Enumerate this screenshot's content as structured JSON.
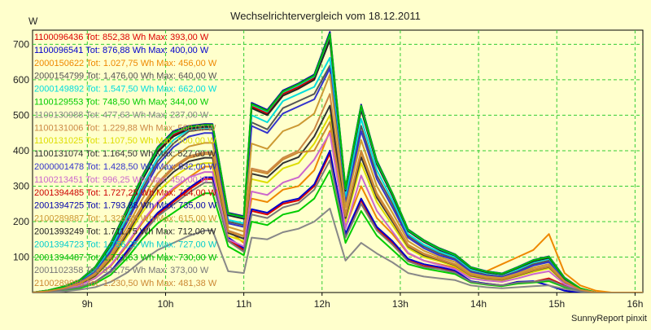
{
  "chart_data": {
    "type": "line",
    "title": "Wechselrichtervergleich vom 18.12.2011",
    "ylabel": "W",
    "xlabel": "",
    "ylim": [
      0,
      740
    ],
    "xlim": [
      8.3,
      16.1
    ],
    "yticks": [
      100,
      200,
      300,
      400,
      500,
      600,
      700
    ],
    "xticks": [
      9,
      10,
      11,
      12,
      13,
      14,
      15,
      16
    ],
    "xtick_labels": [
      "9h",
      "10h",
      "11h",
      "12h",
      "13h",
      "14h",
      "15h",
      "16h"
    ],
    "grid": true,
    "legend_position": "top-left",
    "footer": "SunnyReport pinxit",
    "x": [
      8.3,
      8.5,
      8.7,
      8.9,
      9.1,
      9.3,
      9.5,
      9.7,
      9.9,
      10.1,
      10.3,
      10.5,
      10.6,
      10.8,
      11.0,
      11.1,
      11.3,
      11.5,
      11.7,
      11.9,
      12.1,
      12.3,
      12.5,
      12.7,
      12.9,
      13.1,
      13.3,
      13.5,
      13.7,
      13.9,
      14.1,
      14.3,
      14.5,
      14.7,
      14.9,
      15.1,
      15.3,
      15.5,
      15.7,
      15.9,
      16.1
    ],
    "series": [
      {
        "name": "1100096436 Tot: 852,38 Wh Max: 393,00 W",
        "color": "#dd0000",
        "values": [
          0,
          3,
          8,
          15,
          30,
          60,
          110,
          170,
          220,
          255,
          290,
          320,
          320,
          150,
          120,
          230,
          220,
          250,
          260,
          300,
          392,
          160,
          260,
          180,
          140,
          90,
          75,
          70,
          60,
          30,
          25,
          20,
          30,
          30,
          40,
          20,
          5,
          0,
          0,
          0,
          0
        ]
      },
      {
        "name": "1100096541 Tot: 876,88 Wh Max: 400,00 W",
        "color": "#0000cc",
        "values": [
          0,
          3,
          8,
          15,
          30,
          60,
          115,
          175,
          225,
          260,
          295,
          325,
          325,
          155,
          125,
          235,
          225,
          255,
          265,
          305,
          400,
          165,
          265,
          185,
          145,
          95,
          80,
          72,
          62,
          32,
          25,
          20,
          30,
          32,
          20,
          5,
          0,
          0,
          0,
          0,
          0
        ]
      },
      {
        "name": "2000150622 Tot: 1.027,75 Wh Max: 456,00 W",
        "color": "#ee8800",
        "values": [
          0,
          5,
          10,
          20,
          40,
          75,
          130,
          195,
          250,
          290,
          325,
          355,
          355,
          175,
          140,
          265,
          255,
          290,
          300,
          345,
          456,
          185,
          300,
          210,
          165,
          110,
          90,
          80,
          70,
          45,
          60,
          80,
          100,
          120,
          165,
          55,
          20,
          5,
          0,
          0,
          0
        ]
      },
      {
        "name": "2000154799 Tot: 1.476,00 Wh Max: 640,00 W",
        "color": "#555555",
        "values": [
          0,
          5,
          15,
          30,
          60,
          120,
          200,
          290,
          370,
          420,
          455,
          460,
          460,
          200,
          190,
          480,
          460,
          520,
          540,
          560,
          640,
          260,
          470,
          330,
          250,
          160,
          130,
          110,
          95,
          60,
          50,
          45,
          60,
          80,
          90,
          35,
          10,
          0,
          0,
          0,
          0
        ]
      },
      {
        "name": "2000149892 Tot: 1.547,50 Wh Max: 662,00 W",
        "color": "#00dddd",
        "values": [
          0,
          5,
          15,
          30,
          65,
          125,
          210,
          300,
          380,
          430,
          460,
          465,
          465,
          205,
          195,
          500,
          480,
          540,
          560,
          580,
          662,
          270,
          490,
          345,
          260,
          165,
          135,
          115,
          100,
          65,
          55,
          50,
          65,
          85,
          95,
          38,
          10,
          0,
          0,
          0,
          0
        ]
      },
      {
        "name": "1100129553 Tot: 748,50 Wh Max: 344,00 W",
        "color": "#00cc00",
        "values": [
          0,
          2,
          6,
          12,
          25,
          50,
          95,
          150,
          195,
          225,
          255,
          280,
          280,
          130,
          105,
          200,
          190,
          220,
          230,
          265,
          344,
          140,
          230,
          160,
          120,
          80,
          68,
          60,
          52,
          28,
          22,
          18,
          25,
          28,
          32,
          15,
          5,
          0,
          0,
          0,
          0
        ]
      },
      {
        "name": "1100130988 Tot: 477,63 Wh Max: 237,00 W",
        "color": "#888888",
        "values": [
          0,
          1,
          3,
          8,
          15,
          30,
          55,
          90,
          120,
          140,
          160,
          175,
          175,
          60,
          55,
          155,
          150,
          170,
          180,
          200,
          237,
          90,
          140,
          110,
          85,
          55,
          45,
          40,
          35,
          20,
          15,
          12,
          15,
          18,
          20,
          10,
          3,
          0,
          0,
          0,
          0
        ]
      },
      {
        "name": "1100131006 Tot: 1.229,88 Wh Max: 560,00 W",
        "color": "#cc8844",
        "values": [
          0,
          4,
          12,
          25,
          50,
          100,
          170,
          245,
          310,
          355,
          385,
          395,
          395,
          175,
          160,
          350,
          340,
          380,
          400,
          460,
          560,
          220,
          400,
          280,
          210,
          135,
          110,
          95,
          80,
          50,
          42,
          38,
          50,
          65,
          75,
          30,
          8,
          0,
          0,
          0,
          0
        ]
      },
      {
        "name": "1100131025 Tot: 1.107,50 Wh Max: 500,00 W",
        "color": "#dddd00",
        "values": [
          0,
          4,
          10,
          22,
          45,
          90,
          155,
          225,
          285,
          325,
          355,
          365,
          365,
          160,
          145,
          320,
          310,
          350,
          365,
          420,
          500,
          200,
          365,
          255,
          190,
          125,
          100,
          88,
          74,
          46,
          38,
          34,
          46,
          58,
          68,
          28,
          7,
          0,
          0,
          0,
          0
        ]
      },
      {
        "name": "1100131074 Tot: 1.164,50 Wh Max: 527,00 W",
        "color": "#333333",
        "values": [
          0,
          4,
          11,
          23,
          47,
          95,
          162,
          235,
          298,
          340,
          370,
          380,
          380,
          168,
          152,
          335,
          325,
          365,
          382,
          440,
          527,
          210,
          382,
          268,
          200,
          130,
          105,
          92,
          77,
          48,
          40,
          36,
          48,
          62,
          72,
          29,
          8,
          0,
          0,
          0,
          0
        ]
      },
      {
        "name": "2000001478 Tot: 1.428,50 Wh Max: 632,00 W",
        "color": "#3333cc",
        "values": [
          0,
          5,
          14,
          28,
          58,
          115,
          195,
          280,
          360,
          410,
          440,
          450,
          450,
          195,
          185,
          470,
          450,
          505,
          525,
          545,
          632,
          250,
          455,
          320,
          240,
          155,
          125,
          105,
          92,
          58,
          48,
          44,
          58,
          76,
          86,
          33,
          9,
          0,
          0,
          0,
          0
        ]
      },
      {
        "name": "1100213451 Tot: 996,25 Wh Max: 450,00 W",
        "color": "#cc66cc",
        "values": [
          0,
          3,
          10,
          20,
          40,
          78,
          135,
          200,
          255,
          295,
          325,
          340,
          340,
          150,
          130,
          285,
          275,
          310,
          325,
          375,
          450,
          180,
          330,
          230,
          172,
          112,
          90,
          78,
          66,
          40,
          34,
          30,
          40,
          52,
          60,
          24,
          6,
          0,
          0,
          0,
          0
        ]
      },
      {
        "name": "2001394485 Tot: 1.727,25 Wh Max: 724,00 W",
        "color": "#cc0000",
        "values": [
          0,
          6,
          16,
          33,
          70,
          135,
          225,
          320,
          400,
          445,
          465,
          470,
          470,
          220,
          210,
          525,
          505,
          560,
          580,
          605,
          724,
          290,
          520,
          365,
          275,
          175,
          145,
          122,
          105,
          70,
          58,
          52,
          70,
          90,
          100,
          40,
          11,
          0,
          0,
          0,
          0
        ]
      },
      {
        "name": "2001394725 Tot: 1.793,88 Wh Max: 735,00 W",
        "color": "#0000aa",
        "values": [
          0,
          6,
          17,
          35,
          72,
          140,
          232,
          328,
          410,
          455,
          470,
          475,
          475,
          225,
          215,
          535,
          515,
          570,
          590,
          615,
          735,
          295,
          530,
          372,
          280,
          178,
          148,
          125,
          108,
          72,
          60,
          54,
          72,
          92,
          102,
          42,
          12,
          0,
          0,
          0,
          0
        ]
      },
      {
        "name": "2100289887 Tot: 1.328,90 Wh Max: 615,00 W",
        "color": "#cc9933",
        "values": [
          0,
          4,
          12,
          26,
          54,
          108,
          182,
          262,
          335,
          382,
          412,
          422,
          422,
          185,
          172,
          420,
          405,
          455,
          472,
          505,
          615,
          240,
          430,
          300,
          225,
          145,
          118,
          100,
          86,
          54,
          45,
          41,
          54,
          70,
          80,
          32,
          9,
          0,
          0,
          0,
          0
        ]
      },
      {
        "name": "2001393249 Tot: 1.711,75 Wh Max: 712,00 W",
        "color": "#222222",
        "values": [
          0,
          6,
          16,
          33,
          69,
          133,
          222,
          316,
          396,
          440,
          462,
          467,
          467,
          218,
          208,
          520,
          500,
          555,
          575,
          600,
          712,
          287,
          515,
          362,
          272,
          173,
          143,
          120,
          104,
          69,
          57,
          51,
          69,
          88,
          98,
          39,
          11,
          0,
          0,
          0,
          0
        ]
      },
      {
        "name": "2001394723 Tot: 1.756,25 Wh Max: 727,00 W",
        "color": "#00cccc",
        "values": [
          0,
          6,
          16,
          34,
          71,
          137,
          228,
          324,
          405,
          450,
          467,
          472,
          472,
          222,
          212,
          530,
          510,
          565,
          585,
          610,
          727,
          292,
          525,
          368,
          278,
          176,
          146,
          123,
          106,
          71,
          59,
          53,
          71,
          91,
          101,
          41,
          12,
          0,
          0,
          0,
          0
        ]
      },
      {
        "name": "2001394487 Tot: 1.771,63 Wh Max: 730,00 W",
        "color": "#00bb00",
        "values": [
          0,
          6,
          17,
          34,
          72,
          138,
          230,
          326,
          408,
          452,
          468,
          473,
          473,
          223,
          213,
          532,
          512,
          567,
          588,
          612,
          730,
          294,
          527,
          370,
          279,
          177,
          147,
          124,
          107,
          71,
          59,
          53,
          71,
          91,
          101,
          41,
          12,
          0,
          0,
          0,
          0
        ]
      },
      {
        "name": "2001102358 Tot: 831,75 Wh Max: 373,00 W",
        "color": "#777777",
        "values": [
          0,
          3,
          8,
          15,
          30,
          58,
          105,
          165,
          215,
          248,
          282,
          310,
          310,
          145,
          115,
          220,
          210,
          240,
          252,
          290,
          373,
          155,
          250,
          175,
          135,
          88,
          72,
          66,
          56,
          30,
          24,
          20,
          28,
          30,
          36,
          18,
          5,
          0,
          0,
          0,
          0
        ]
      },
      {
        "name": "2100289886 Tot: 1.230,50 Wh Max: 481,38 W",
        "color": "#cc8833",
        "values": [
          0,
          4,
          12,
          25,
          50,
          98,
          168,
          240,
          305,
          350,
          380,
          390,
          390,
          172,
          158,
          345,
          335,
          375,
          395,
          400,
          481,
          215,
          395,
          275,
          205,
          132,
          108,
          93,
          78,
          49,
          41,
          37,
          49,
          63,
          73,
          30,
          8,
          0,
          0,
          0,
          0
        ]
      }
    ]
  }
}
